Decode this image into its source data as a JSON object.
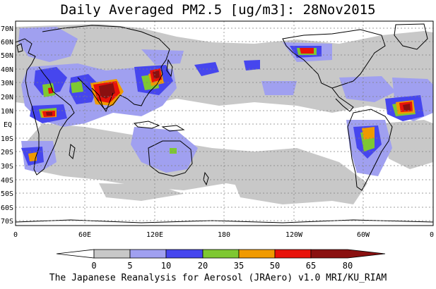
{
  "title": "Daily Averaged PM2.5 [ug/m3]: 28Nov2015",
  "lat_labels": [
    "70N",
    "60N",
    "50N",
    "40N",
    "30N",
    "20N",
    "10N",
    "EQ",
    "10S",
    "20S",
    "30S",
    "40S",
    "50S",
    "60S",
    "70S"
  ],
  "lon_labels": [
    "0",
    "60E",
    "120E",
    "180",
    "120W",
    "60W",
    "0"
  ],
  "colorbar": {
    "labels": [
      "0",
      "5",
      "10",
      "20",
      "35",
      "50",
      "65",
      "80"
    ],
    "colors": [
      "#ffffff",
      "#c8c8c8",
      "#a0a0f0",
      "#4646ee",
      "#7ec832",
      "#f09a00",
      "#e8120a",
      "#8a1010"
    ]
  },
  "footer": "The Japanese Reanalysis for Aerosol (JRAero) v1.0 MRI/KU_RIAM"
}
